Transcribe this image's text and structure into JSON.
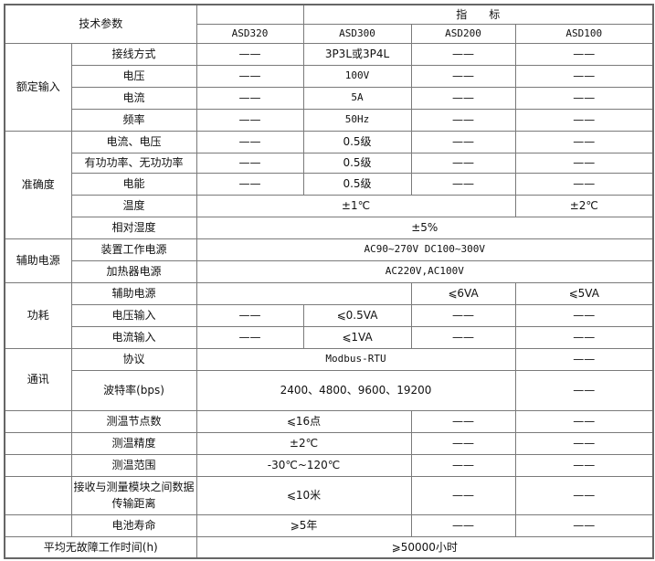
{
  "header": {
    "title": "技术参数",
    "indicator": "指　　标",
    "models": [
      "ASD320",
      "ASD300",
      "ASD200",
      "ASD100"
    ]
  },
  "rows": [
    [
      "额定输入",
      "接线方式",
      "——",
      "3P3L或3P4L",
      "——",
      "——"
    ],
    [
      "电压",
      "——",
      "100V",
      "——",
      "——"
    ],
    [
      "电流",
      "——",
      "5A",
      "——",
      "——"
    ],
    [
      "频率",
      "——",
      "50Hz",
      "——",
      "——"
    ],
    [
      "准确度",
      "电流、电压",
      "——",
      "0.5级",
      "——",
      "——"
    ],
    [
      "有功功率、无功功率",
      "——",
      "0.5级",
      "——",
      "——"
    ],
    [
      "电能",
      "——",
      "0.5级",
      "——",
      "——"
    ],
    [
      "温度",
      "±1℃",
      "±2℃"
    ],
    [
      "相对湿度",
      "±5%"
    ],
    [
      "辅助电源",
      "装置工作电源",
      "AC90~270V  DC100~300V"
    ],
    [
      "加热器电源",
      "AC220V,AC100V"
    ],
    [
      "功耗",
      "辅助电源",
      "",
      "⩽6VA",
      "⩽5VA"
    ],
    [
      "电压输入",
      "——",
      "⩽0.5VA",
      "——",
      "——"
    ],
    [
      "电流输入",
      "——",
      "⩽1VA",
      "——",
      "——"
    ],
    [
      "通讯",
      "协议",
      "Modbus-RTU",
      "——"
    ],
    [
      "波特率(bps)",
      "2400、4800、9600、19200",
      "——"
    ],
    [
      "",
      "测温节点数",
      "⩽16点",
      "——",
      "——"
    ],
    [
      "",
      "测温精度",
      "±2℃",
      "——",
      "——"
    ],
    [
      "",
      "测温范围",
      "-30℃~120℃",
      "——",
      "——"
    ],
    [
      "",
      "接收与测量模块之间数据传输距离",
      "⩽10米",
      "——",
      "——"
    ],
    [
      "",
      "电池寿命",
      "⩾5年",
      "——",
      "——"
    ],
    [
      "平均无故障工作时间(h)",
      "⩾50000小时"
    ]
  ]
}
